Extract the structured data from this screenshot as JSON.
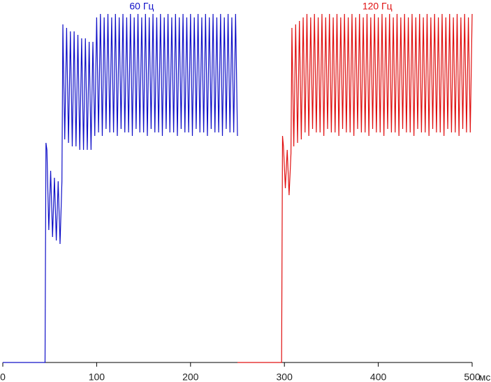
{
  "chart_data": {
    "type": "line",
    "x_unit_label": "мс",
    "xlim": [
      0,
      500
    ],
    "xticks": [
      0,
      100,
      200,
      300,
      400,
      500
    ],
    "ylim": [
      0,
      100
    ],
    "series": [
      {
        "name": "60 Гц",
        "color": "#1010c8",
        "x": [
          0,
          45,
          46,
          47,
          49,
          51,
          53,
          55,
          57,
          59,
          61,
          63,
          64,
          66,
          68,
          70,
          72,
          74,
          76,
          78,
          80,
          82,
          84,
          86,
          88,
          90,
          92,
          94,
          96,
          98,
          100,
          102,
          104,
          106,
          108,
          110,
          112,
          114,
          116,
          118,
          120,
          122,
          124,
          126,
          128,
          130,
          132,
          134,
          136,
          138,
          140,
          142,
          144,
          146,
          148,
          150,
          152,
          154,
          156,
          158,
          160,
          162,
          164,
          166,
          168,
          170,
          172,
          174,
          176,
          178,
          180,
          182,
          184,
          186,
          188,
          190,
          192,
          194,
          196,
          198,
          200,
          202,
          204,
          206,
          208,
          210,
          212,
          214,
          216,
          218,
          220,
          222,
          224,
          226,
          228,
          230,
          232,
          234,
          236,
          238,
          240,
          242,
          244,
          246,
          248,
          250
        ],
        "values": [
          0,
          0,
          63,
          61,
          38,
          55,
          36,
          53,
          35,
          52,
          34,
          52,
          97,
          64,
          96,
          63,
          95,
          62,
          95,
          62,
          94,
          61,
          93,
          61,
          93,
          61,
          92,
          61,
          92,
          65,
          99,
          66,
          100,
          65,
          99,
          67,
          100,
          66,
          99,
          66,
          100,
          65,
          99,
          67,
          100,
          66,
          99,
          66,
          100,
          65,
          99,
          67,
          100,
          66,
          99,
          66,
          100,
          65,
          99,
          67,
          100,
          66,
          99,
          66,
          100,
          65,
          99,
          67,
          100,
          66,
          99,
          66,
          100,
          65,
          99,
          67,
          100,
          66,
          99,
          66,
          100,
          65,
          99,
          67,
          100,
          66,
          99,
          66,
          100,
          65,
          99,
          67,
          100,
          66,
          99,
          66,
          100,
          65,
          99,
          67,
          100,
          66,
          99,
          66,
          100,
          65
        ]
      },
      {
        "name": "120 Гц",
        "color": "#e01010",
        "x": [
          250,
          297,
          298,
          299,
          301,
          303,
          305,
          307,
          308,
          310,
          312,
          314,
          316,
          318,
          320,
          322,
          324,
          326,
          328,
          330,
          332,
          334,
          336,
          338,
          340,
          342,
          344,
          346,
          348,
          350,
          352,
          354,
          356,
          358,
          360,
          362,
          364,
          366,
          368,
          370,
          372,
          374,
          376,
          378,
          380,
          382,
          384,
          386,
          388,
          390,
          392,
          394,
          396,
          398,
          400,
          402,
          404,
          406,
          408,
          410,
          412,
          414,
          416,
          418,
          420,
          422,
          424,
          426,
          428,
          430,
          432,
          434,
          436,
          438,
          440,
          442,
          444,
          446,
          448,
          450,
          452,
          454,
          456,
          458,
          460,
          462,
          464,
          466,
          468,
          470,
          472,
          474,
          476,
          478,
          480,
          482,
          484,
          486,
          488,
          490,
          492,
          494,
          496,
          498,
          500
        ],
        "values": [
          0,
          0,
          65,
          62,
          50,
          61,
          48,
          60,
          96,
          62,
          97,
          63,
          98,
          64,
          99,
          66,
          100,
          65,
          99,
          67,
          100,
          66,
          99,
          66,
          100,
          65,
          99,
          67,
          100,
          66,
          99,
          66,
          100,
          65,
          99,
          67,
          100,
          66,
          99,
          66,
          100,
          65,
          99,
          67,
          100,
          66,
          99,
          66,
          100,
          65,
          99,
          67,
          100,
          66,
          99,
          66,
          100,
          65,
          99,
          67,
          100,
          66,
          99,
          66,
          100,
          65,
          99,
          67,
          100,
          66,
          99,
          66,
          100,
          65,
          99,
          67,
          100,
          66,
          99,
          66,
          100,
          65,
          99,
          67,
          100,
          66,
          99,
          66,
          100,
          65,
          99,
          67,
          100,
          66,
          99,
          66,
          100,
          65,
          99,
          67,
          100,
          66,
          99,
          66,
          100
        ]
      }
    ]
  }
}
